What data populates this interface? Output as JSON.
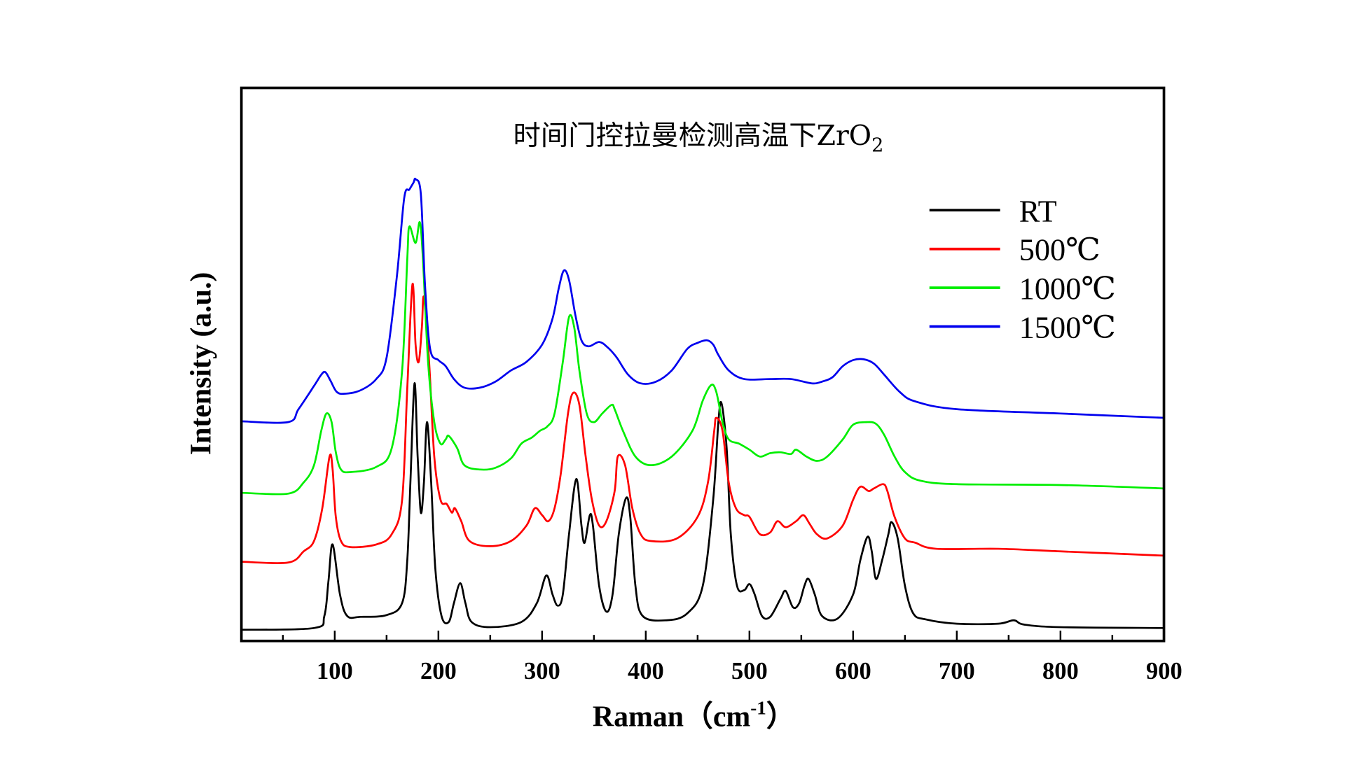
{
  "chart_data": {
    "type": "line",
    "title": "时间门控拉曼检测高温下ZrO",
    "title_subscript": "2",
    "xlabel": "Raman（cm",
    "xlabel_superscript": "-1",
    "xlabel_end": "）",
    "ylabel": "Intensity (a.u.)",
    "xlim": [
      10,
      900
    ],
    "ylim": [
      0,
      642
    ],
    "xticks": [
      100,
      200,
      300,
      400,
      500,
      600,
      700,
      800,
      900
    ],
    "xtick_labels": [
      "100",
      "200",
      "300",
      "400",
      "500",
      "600",
      "700",
      "800",
      "900"
    ],
    "x_minor_ticks": [
      50,
      150,
      250,
      350,
      450,
      550,
      650,
      750,
      850
    ],
    "grid": false,
    "y_ticks_shown": false,
    "legend_position": "top-right",
    "series": [
      {
        "name": "RT",
        "color": "#000000",
        "points": [
          [
            10,
            13
          ],
          [
            80,
            15
          ],
          [
            90,
            29
          ],
          [
            94,
            70
          ],
          [
            98,
            112
          ],
          [
            105,
            54
          ],
          [
            112,
            29
          ],
          [
            125,
            28
          ],
          [
            150,
            30
          ],
          [
            165,
            44
          ],
          [
            170,
            94
          ],
          [
            173,
            184
          ],
          [
            177,
            299
          ],
          [
            180,
            214
          ],
          [
            183,
            149
          ],
          [
            186,
            184
          ],
          [
            189,
            254
          ],
          [
            193,
            184
          ],
          [
            197,
            84
          ],
          [
            203,
            29
          ],
          [
            210,
            22
          ],
          [
            215,
            44
          ],
          [
            221,
            67
          ],
          [
            226,
            44
          ],
          [
            232,
            22
          ],
          [
            250,
            16
          ],
          [
            280,
            22
          ],
          [
            295,
            44
          ],
          [
            304,
            76
          ],
          [
            310,
            54
          ],
          [
            315,
            41
          ],
          [
            320,
            54
          ],
          [
            326,
            124
          ],
          [
            333,
            188
          ],
          [
            338,
            134
          ],
          [
            341,
            114
          ],
          [
            346,
            146
          ],
          [
            349,
            134
          ],
          [
            355,
            64
          ],
          [
            362,
            34
          ],
          [
            368,
            54
          ],
          [
            374,
            124
          ],
          [
            381,
            166
          ],
          [
            385,
            144
          ],
          [
            390,
            64
          ],
          [
            397,
            29
          ],
          [
            420,
            24
          ],
          [
            440,
            32
          ],
          [
            455,
            64
          ],
          [
            465,
            164
          ],
          [
            470,
            254
          ],
          [
            473,
            276
          ],
          [
            478,
            224
          ],
          [
            482,
            124
          ],
          [
            488,
            64
          ],
          [
            495,
            59
          ],
          [
            500,
            66
          ],
          [
            505,
            54
          ],
          [
            512,
            29
          ],
          [
            520,
            28
          ],
          [
            530,
            49
          ],
          [
            535,
            58
          ],
          [
            542,
            39
          ],
          [
            548,
            44
          ],
          [
            553,
            64
          ],
          [
            557,
            72
          ],
          [
            563,
            54
          ],
          [
            570,
            29
          ],
          [
            585,
            26
          ],
          [
            600,
            54
          ],
          [
            607,
            94
          ],
          [
            614,
            121
          ],
          [
            618,
            104
          ],
          [
            622,
            72
          ],
          [
            628,
            94
          ],
          [
            634,
            124
          ],
          [
            637,
            138
          ],
          [
            643,
            119
          ],
          [
            650,
            64
          ],
          [
            658,
            32
          ],
          [
            670,
            25
          ],
          [
            700,
            20
          ],
          [
            740,
            20
          ],
          [
            755,
            24
          ],
          [
            765,
            19
          ],
          [
            800,
            16
          ],
          [
            900,
            15
          ]
        ]
      },
      {
        "name": "500℃",
        "color": "#ff0000",
        "points": [
          [
            10,
            92
          ],
          [
            55,
            91
          ],
          [
            70,
            104
          ],
          [
            80,
            116
          ],
          [
            88,
            154
          ],
          [
            95,
            214
          ],
          [
            98,
            199
          ],
          [
            101,
            144
          ],
          [
            106,
            116
          ],
          [
            115,
            109
          ],
          [
            140,
            112
          ],
          [
            155,
            124
          ],
          [
            165,
            164
          ],
          [
            170,
            294
          ],
          [
            175,
            414
          ],
          [
            178,
            344
          ],
          [
            181,
            324
          ],
          [
            184,
            364
          ],
          [
            186,
            399
          ],
          [
            191,
            324
          ],
          [
            196,
            214
          ],
          [
            202,
            164
          ],
          [
            208,
            159
          ],
          [
            213,
            149
          ],
          [
            216,
            154
          ],
          [
            222,
            139
          ],
          [
            230,
            116
          ],
          [
            250,
            110
          ],
          [
            270,
            116
          ],
          [
            285,
            134
          ],
          [
            293,
            154
          ],
          [
            300,
            146
          ],
          [
            306,
            139
          ],
          [
            312,
            154
          ],
          [
            318,
            194
          ],
          [
            325,
            264
          ],
          [
            330,
            288
          ],
          [
            336,
            274
          ],
          [
            342,
            214
          ],
          [
            348,
            164
          ],
          [
            355,
            134
          ],
          [
            362,
            139
          ],
          [
            370,
            174
          ],
          [
            373,
            214
          ],
          [
            380,
            204
          ],
          [
            387,
            154
          ],
          [
            395,
            124
          ],
          [
            405,
            116
          ],
          [
            430,
            119
          ],
          [
            450,
            144
          ],
          [
            460,
            184
          ],
          [
            466,
            244
          ],
          [
            468,
            259
          ],
          [
            474,
            244
          ],
          [
            480,
            184
          ],
          [
            487,
            154
          ],
          [
            495,
            146
          ],
          [
            500,
            144
          ],
          [
            510,
            124
          ],
          [
            520,
            126
          ],
          [
            527,
            139
          ],
          [
            535,
            132
          ],
          [
            545,
            139
          ],
          [
            552,
            146
          ],
          [
            558,
            136
          ],
          [
            565,
            124
          ],
          [
            575,
            119
          ],
          [
            590,
            134
          ],
          [
            600,
            164
          ],
          [
            607,
            179
          ],
          [
            615,
            174
          ],
          [
            620,
            177
          ],
          [
            629,
            182
          ],
          [
            633,
            174
          ],
          [
            640,
            144
          ],
          [
            650,
            119
          ],
          [
            660,
            114
          ],
          [
            680,
            107
          ],
          [
            740,
            107
          ],
          [
            800,
            104
          ],
          [
            900,
            99
          ]
        ]
      },
      {
        "name": "1000℃",
        "color": "#00ee00",
        "points": [
          [
            10,
            172
          ],
          [
            55,
            171
          ],
          [
            70,
            184
          ],
          [
            80,
            204
          ],
          [
            87,
            244
          ],
          [
            92,
            264
          ],
          [
            97,
            254
          ],
          [
            101,
            219
          ],
          [
            106,
            199
          ],
          [
            115,
            196
          ],
          [
            140,
            202
          ],
          [
            155,
            224
          ],
          [
            165,
            314
          ],
          [
            170,
            444
          ],
          [
            172,
            481
          ],
          [
            178,
            462
          ],
          [
            182,
            486
          ],
          [
            185,
            444
          ],
          [
            190,
            324
          ],
          [
            196,
            254
          ],
          [
            202,
            229
          ],
          [
            207,
            234
          ],
          [
            210,
            238
          ],
          [
            218,
            224
          ],
          [
            225,
            204
          ],
          [
            240,
            199
          ],
          [
            255,
            201
          ],
          [
            270,
            212
          ],
          [
            280,
            229
          ],
          [
            290,
            236
          ],
          [
            298,
            244
          ],
          [
            305,
            249
          ],
          [
            312,
            264
          ],
          [
            320,
            324
          ],
          [
            326,
            376
          ],
          [
            331,
            364
          ],
          [
            336,
            314
          ],
          [
            343,
            264
          ],
          [
            350,
            254
          ],
          [
            358,
            264
          ],
          [
            367,
            274
          ],
          [
            370,
            269
          ],
          [
            378,
            244
          ],
          [
            390,
            214
          ],
          [
            405,
            204
          ],
          [
            425,
            214
          ],
          [
            445,
            244
          ],
          [
            455,
            279
          ],
          [
            463,
            297
          ],
          [
            468,
            289
          ],
          [
            474,
            254
          ],
          [
            480,
            234
          ],
          [
            490,
            229
          ],
          [
            500,
            222
          ],
          [
            510,
            214
          ],
          [
            520,
            218
          ],
          [
            530,
            219
          ],
          [
            540,
            217
          ],
          [
            545,
            222
          ],
          [
            555,
            214
          ],
          [
            565,
            209
          ],
          [
            575,
            214
          ],
          [
            590,
            234
          ],
          [
            600,
            251
          ],
          [
            613,
            254
          ],
          [
            622,
            252
          ],
          [
            630,
            239
          ],
          [
            640,
            214
          ],
          [
            650,
            196
          ],
          [
            665,
            186
          ],
          [
            700,
            182
          ],
          [
            800,
            181
          ],
          [
            900,
            177
          ]
        ]
      },
      {
        "name": "1500℃",
        "color": "#0000ee",
        "points": [
          [
            10,
            255
          ],
          [
            55,
            254
          ],
          [
            65,
            269
          ],
          [
            80,
            296
          ],
          [
            87,
            309
          ],
          [
            91,
            312
          ],
          [
            96,
            302
          ],
          [
            102,
            289
          ],
          [
            110,
            287
          ],
          [
            125,
            291
          ],
          [
            140,
            304
          ],
          [
            150,
            329
          ],
          [
            160,
            424
          ],
          [
            167,
            514
          ],
          [
            172,
            524
          ],
          [
            176,
            532
          ],
          [
            178,
            536
          ],
          [
            183,
            519
          ],
          [
            187,
            414
          ],
          [
            192,
            339
          ],
          [
            200,
            326
          ],
          [
            207,
            319
          ],
          [
            215,
            304
          ],
          [
            225,
            294
          ],
          [
            240,
            294
          ],
          [
            255,
            301
          ],
          [
            270,
            314
          ],
          [
            285,
            324
          ],
          [
            300,
            344
          ],
          [
            310,
            374
          ],
          [
            316,
            409
          ],
          [
            321,
            430
          ],
          [
            326,
            419
          ],
          [
            332,
            379
          ],
          [
            338,
            349
          ],
          [
            345,
            342
          ],
          [
            355,
            347
          ],
          [
            363,
            341
          ],
          [
            372,
            329
          ],
          [
            383,
            309
          ],
          [
            395,
            299
          ],
          [
            410,
            301
          ],
          [
            425,
            314
          ],
          [
            440,
            339
          ],
          [
            450,
            346
          ],
          [
            459,
            349
          ],
          [
            465,
            344
          ],
          [
            470,
            332
          ],
          [
            480,
            314
          ],
          [
            495,
            304
          ],
          [
            520,
            304
          ],
          [
            540,
            304
          ],
          [
            560,
            299
          ],
          [
            570,
            301
          ],
          [
            580,
            306
          ],
          [
            590,
            319
          ],
          [
            600,
            326
          ],
          [
            610,
            327
          ],
          [
            620,
            322
          ],
          [
            630,
            309
          ],
          [
            645,
            289
          ],
          [
            660,
            278
          ],
          [
            700,
            269
          ],
          [
            800,
            264
          ],
          [
            900,
            259
          ]
        ]
      }
    ]
  }
}
